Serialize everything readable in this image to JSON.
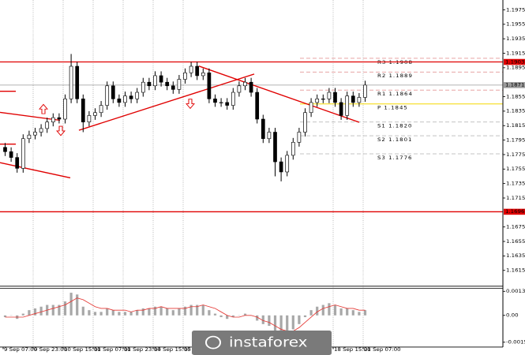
{
  "chart_data": {
    "type": "candlestick",
    "color": "#000000",
    "grid": "x",
    "categories": [
      "9 Sep 07:00",
      null,
      null,
      null,
      null,
      "9 Sep 23:00",
      null,
      null,
      null,
      null,
      "10 Sep 15:00",
      null,
      null,
      null,
      null,
      "11 Sep 07:00",
      null,
      null,
      null,
      null,
      "11 Sep 23:00",
      null,
      null,
      null,
      null,
      "14 Sep 15:00",
      null,
      null,
      null,
      null,
      "15 Sep 07:00",
      null,
      null,
      null,
      null,
      null,
      null,
      null,
      null,
      null,
      null,
      null,
      null,
      null,
      null,
      null,
      null,
      null,
      null,
      null,
      null,
      null,
      null,
      null,
      null,
      "18 Sep 15:00",
      null,
      null,
      null,
      null,
      "21 Sep 07:00"
    ],
    "open": [
      1.1785,
      1.1779,
      1.1771,
      1.1756,
      1.1797,
      1.1802,
      1.1806,
      1.1811,
      1.182,
      1.1826,
      1.1824,
      1.1852,
      1.1897,
      1.1852,
      1.182,
      1.1829,
      1.1833,
      1.1843,
      1.187,
      1.1852,
      1.1847,
      1.1856,
      1.1852,
      1.1861,
      1.1875,
      1.187,
      1.1884,
      1.1875,
      1.187,
      1.1865,
      1.1879,
      1.1888,
      1.1897,
      1.1884,
      1.1888,
      1.1852,
      1.1847,
      1.1847,
      1.1843,
      1.1861,
      1.187,
      1.1875,
      1.1861,
      1.1824,
      1.1797,
      1.1806,
      1.1765,
      1.1751,
      1.1774,
      1.1792,
      1.1806,
      1.1833,
      1.1847,
      1.1852,
      1.1852,
      1.1861,
      1.1847,
      1.1829,
      1.1856,
      1.1847,
      1.1854
    ],
    "high": [
      1.1791,
      1.1785,
      1.1777,
      1.1803,
      1.1808,
      1.1812,
      1.1817,
      1.1826,
      1.1832,
      1.1832,
      1.1858,
      1.1914,
      1.1903,
      1.1858,
      1.1835,
      1.1839,
      1.1849,
      1.1876,
      1.1876,
      1.1858,
      1.1862,
      1.1862,
      1.1867,
      1.1881,
      1.1881,
      1.189,
      1.189,
      1.1881,
      1.1876,
      1.1885,
      1.1894,
      1.1903,
      1.1903,
      1.1894,
      1.1894,
      1.1858,
      1.1853,
      1.1853,
      1.1867,
      1.1876,
      1.1881,
      1.1881,
      1.1867,
      1.183,
      1.1812,
      1.1812,
      1.1771,
      1.178,
      1.1798,
      1.1812,
      1.1839,
      1.1853,
      1.1858,
      1.1858,
      1.1867,
      1.1867,
      1.1853,
      1.1862,
      1.1862,
      1.186,
      1.1877
    ],
    "low": [
      1.1773,
      1.1765,
      1.175,
      1.175,
      1.1791,
      1.1796,
      1.18,
      1.1805,
      1.1814,
      1.1818,
      1.1818,
      1.1846,
      1.1846,
      1.1806,
      1.1814,
      1.1823,
      1.1827,
      1.1837,
      1.1846,
      1.1841,
      1.1841,
      1.1846,
      1.1846,
      1.1855,
      1.1864,
      1.1864,
      1.1869,
      1.1864,
      1.1859,
      1.1859,
      1.1873,
      1.1882,
      1.1878,
      1.1878,
      1.1846,
      1.1841,
      1.1841,
      1.1837,
      1.1837,
      1.1855,
      1.1864,
      1.1855,
      1.1818,
      1.1791,
      1.1791,
      1.1745,
      1.1738,
      1.1745,
      1.1768,
      1.1786,
      1.18,
      1.1827,
      1.1841,
      1.1846,
      1.1846,
      1.1841,
      1.1823,
      1.1823,
      1.1841,
      1.1841,
      1.1848
    ],
    "close": [
      1.1779,
      1.1771,
      1.1756,
      1.1797,
      1.1802,
      1.1806,
      1.1811,
      1.182,
      1.1826,
      1.1824,
      1.1852,
      1.1897,
      1.1852,
      1.182,
      1.1829,
      1.1833,
      1.1843,
      1.187,
      1.1852,
      1.1847,
      1.1856,
      1.1852,
      1.1861,
      1.1875,
      1.187,
      1.1884,
      1.1875,
      1.187,
      1.1865,
      1.1879,
      1.1888,
      1.1897,
      1.1884,
      1.1888,
      1.1852,
      1.1847,
      1.1847,
      1.1843,
      1.1861,
      1.187,
      1.1875,
      1.1861,
      1.1824,
      1.1797,
      1.1806,
      1.1765,
      1.1751,
      1.1774,
      1.1792,
      1.1806,
      1.1833,
      1.1847,
      1.1852,
      1.1852,
      1.1861,
      1.1847,
      1.1829,
      1.1856,
      1.1847,
      1.1854,
      1.1871
    ],
    "ylim": [
      1.1594,
      1.1984
    ],
    "yticks": [
      1.1975,
      1.1955,
      1.1935,
      1.1915,
      1.1895,
      1.1855,
      1.1835,
      1.1815,
      1.1795,
      1.1775,
      1.1755,
      1.1735,
      1.1715,
      1.1675,
      1.1655,
      1.1635,
      1.1615
    ],
    "levels": [
      {
        "value": 1.1903,
        "label": "1.1903",
        "color": "#e00000"
      },
      {
        "value": 1.1871,
        "label": "1.1871",
        "color": "#9a9a9a"
      },
      {
        "value": 1.1696,
        "label": "1.1696",
        "color": "#e00000"
      }
    ],
    "pivots": [
      {
        "value": 1.1908,
        "label": "R3 1.1908",
        "color": "#e8a4a4"
      },
      {
        "value": 1.1889,
        "label": "R2 1.1889",
        "color": "#e8a4a4"
      },
      {
        "value": 1.1864,
        "label": "R1 1.1864",
        "color": "#e8a4a4"
      },
      {
        "value": 1.1845,
        "label": "P 1.1845",
        "color": "#f5d800"
      },
      {
        "value": 1.182,
        "label": "S1 1.1820",
        "color": "#c4c4c4"
      },
      {
        "value": 1.1801,
        "label": "S2 1.1801",
        "color": "#c4c4c4"
      },
      {
        "value": 1.1776,
        "label": "S3 1.1776",
        "color": "#c4c4c4"
      }
    ],
    "indicator": {
      "type": "histogram",
      "color": "#a8a8a8",
      "signal_color": "#e53935",
      "ylim": [
        -0.00178,
        0.00152
      ],
      "yticks": [
        0.00138,
        {
          "value": 0,
          "label": "0.00"
        },
        -0.00154
      ],
      "values": [
        -0.0001,
        0.0,
        -0.0002,
        0.0001,
        0.0003,
        0.0004,
        0.0005,
        0.0006,
        0.0006,
        0.0006,
        0.0008,
        0.0013,
        0.0012,
        0.0005,
        0.0003,
        0.0002,
        0.0002,
        0.0004,
        0.0003,
        0.0002,
        0.0002,
        0.0002,
        0.0003,
        0.0004,
        0.0004,
        0.0005,
        0.0005,
        0.0004,
        0.0003,
        0.0004,
        0.0005,
        0.0006,
        0.0006,
        0.0006,
        0.0003,
        0.0001,
        -0.0001,
        -0.0002,
        -0.0001,
        0.0,
        0.0001,
        0.0,
        -0.0003,
        -0.0005,
        -0.0006,
        -0.0009,
        -0.0011,
        -0.001,
        -0.0008,
        -0.0005,
        -0.0001,
        0.0003,
        0.0005,
        0.0006,
        0.0007,
        0.0006,
        0.0004,
        0.0004,
        0.0003,
        0.0002,
        0.0003
      ],
      "signal": [
        -0.0001,
        -0.0001,
        -0.0001,
        -0.0001,
        0.0,
        0.0001,
        0.0002,
        0.0003,
        0.0004,
        0.0005,
        0.0006,
        0.0008,
        0.001,
        0.0009,
        0.0007,
        0.0005,
        0.0004,
        0.0004,
        0.0003,
        0.0003,
        0.0003,
        0.0002,
        0.0003,
        0.0003,
        0.0004,
        0.0004,
        0.0005,
        0.0004,
        0.0004,
        0.0004,
        0.0004,
        0.0005,
        0.0005,
        0.0006,
        0.0005,
        0.0004,
        0.0002,
        0.0,
        -0.0001,
        -0.0001,
        0.0,
        0.0,
        -0.0001,
        -0.0003,
        -0.0004,
        -0.0006,
        -0.0008,
        -0.0009,
        -0.0009,
        -0.0007,
        -0.0004,
        -0.0001,
        0.0002,
        0.0004,
        0.0005,
        0.0006,
        0.0005,
        0.0004,
        0.0004,
        0.0003,
        0.0003
      ]
    },
    "logo": "instaforex"
  }
}
